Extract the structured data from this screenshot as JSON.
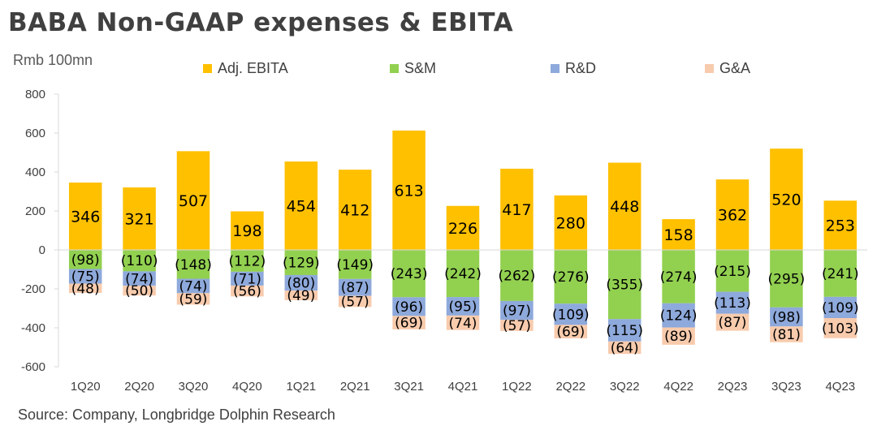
{
  "title": "BABA Non-GAAP expenses & EBITA",
  "unit_label": "Rmb 100mn",
  "source": "Source: Company, Longbridge Dolphin Research",
  "chart_data": {
    "type": "bar",
    "stacked": true,
    "title": "BABA Non-GAAP expenses & EBITA",
    "ylabel": "Rmb 100mn",
    "xlabel": "",
    "ylim": [
      -600,
      800
    ],
    "yticks": [
      800,
      600,
      400,
      200,
      0,
      -200,
      -400,
      -600
    ],
    "categories": [
      "1Q20",
      "2Q20",
      "3Q20",
      "4Q20",
      "1Q21",
      "2Q21",
      "3Q21",
      "4Q21",
      "1Q22",
      "2Q22",
      "3Q22",
      "4Q22",
      "2Q23",
      "3Q23",
      "4Q23"
    ],
    "series": [
      {
        "name": "Adj. EBITA",
        "color": "#FFC000",
        "values": [
          346,
          321,
          507,
          198,
          454,
          412,
          613,
          226,
          417,
          280,
          448,
          158,
          362,
          520,
          253
        ],
        "labels": [
          "346",
          "321",
          "507",
          "198",
          "454",
          "412",
          "613",
          "226",
          "417",
          "280",
          "448",
          "158",
          "362",
          "520",
          "253"
        ]
      },
      {
        "name": "S&M",
        "color": "#92D050",
        "values": [
          -98,
          -110,
          -148,
          -112,
          -129,
          -149,
          -243,
          -242,
          -262,
          -276,
          -355,
          -274,
          -215,
          -295,
          -241
        ],
        "labels": [
          "(98)",
          "(110)",
          "(148)",
          "(112)",
          "(129)",
          "(149)",
          "(243)",
          "(242)",
          "(262)",
          "(276)",
          "(355)",
          "(274)",
          "(215)",
          "(295)",
          "(241)"
        ]
      },
      {
        "name": "R&D",
        "color": "#8EA9DB",
        "values": [
          -75,
          -74,
          -74,
          -71,
          -80,
          -87,
          -96,
          -95,
          -97,
          -109,
          -115,
          -124,
          -113,
          -98,
          -109
        ],
        "labels": [
          "(75)",
          "(74)",
          "(74)",
          "(71)",
          "(80)",
          "(87)",
          "(96)",
          "(95)",
          "(97)",
          "(109)",
          "(115)",
          "(124)",
          "(113)",
          "(98)",
          "(109)"
        ]
      },
      {
        "name": "G&A",
        "color": "#F8CBAD",
        "values": [
          -48,
          -50,
          -59,
          -56,
          -49,
          -57,
          -69,
          -74,
          -57,
          -69,
          -64,
          -89,
          -87,
          -81,
          -103
        ],
        "labels": [
          "(48)",
          "(50)",
          "(59)",
          "(56)",
          "(49)",
          "(57)",
          "(69)",
          "(74)",
          "(57)",
          "(69)",
          "(64)",
          "(89)",
          "(87)",
          "(81)",
          "(103)"
        ]
      }
    ],
    "legend_position": "top",
    "grid": false
  }
}
